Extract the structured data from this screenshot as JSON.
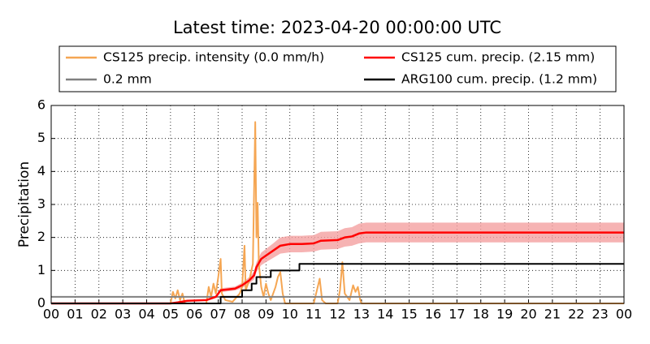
{
  "chart_data": {
    "type": "line",
    "title": "Latest time: 2023-04-20 00:00:00 UTC",
    "y_label": "Precipitation",
    "xlim": [
      0,
      24
    ],
    "ylim": [
      0,
      6
    ],
    "xticks": [
      {
        "value": 0,
        "label": "00"
      },
      {
        "value": 1,
        "label": "01"
      },
      {
        "value": 2,
        "label": "02"
      },
      {
        "value": 3,
        "label": "03"
      },
      {
        "value": 4,
        "label": "04"
      },
      {
        "value": 5,
        "label": "05"
      },
      {
        "value": 6,
        "label": "06"
      },
      {
        "value": 7,
        "label": "07"
      },
      {
        "value": 8,
        "label": "08"
      },
      {
        "value": 9,
        "label": "09"
      },
      10,
      11,
      12,
      13,
      14,
      15,
      16,
      17,
      18,
      19,
      20,
      21,
      22,
      23,
      {
        "value": 24,
        "label": "00"
      }
    ],
    "yticks": [
      0,
      1,
      2,
      3,
      4,
      5,
      6
    ],
    "grid": true,
    "legend_ncol": 2,
    "series": [
      {
        "name": "CS125 precip. intensity (0.0 mm/h)",
        "color": "#f5a653",
        "x": [
          0,
          5.0,
          5.1,
          5.2,
          5.3,
          5.4,
          5.5,
          5.6,
          6.5,
          6.6,
          6.7,
          6.8,
          6.9,
          7.0,
          7.1,
          7.15,
          7.3,
          7.6,
          7.9,
          8.0,
          8.1,
          8.15,
          8.3,
          8.45,
          8.55,
          8.6,
          8.65,
          8.7,
          8.8,
          8.9,
          9.0,
          9.1,
          9.2,
          9.4,
          9.5,
          9.6,
          9.7,
          9.8,
          11.0,
          11.1,
          11.25,
          11.35,
          11.5,
          12.0,
          12.1,
          12.2,
          12.3,
          12.5,
          12.65,
          12.75,
          12.85,
          12.95,
          13.0,
          24
        ],
        "values": [
          0,
          0,
          0.35,
          0.15,
          0.4,
          0.1,
          0.3,
          0,
          0,
          0.5,
          0.2,
          0.6,
          0.3,
          0.8,
          1.35,
          0.3,
          0.1,
          0.05,
          0.3,
          0.5,
          1.75,
          0.4,
          0.7,
          1.2,
          5.5,
          2,
          3.05,
          1.2,
          0.5,
          0.2,
          0.6,
          0.3,
          0.1,
          0.5,
          0.8,
          0.95,
          0.3,
          0,
          0,
          0.3,
          0.75,
          0.1,
          0,
          0,
          0.4,
          1.25,
          0.3,
          0.1,
          0.55,
          0.35,
          0.5,
          0.1,
          0,
          0
        ]
      },
      {
        "name": "0.2 mm",
        "color": "#808080",
        "x": [
          0,
          24
        ],
        "values": [
          0.2,
          0.2
        ]
      },
      {
        "name": "CS125 cum. precip. (2.15 mm)",
        "color": "#ff0000",
        "band_color": "#f4a0a0",
        "x": [
          0,
          5,
          5.3,
          5.7,
          6.5,
          6.9,
          7.1,
          7.7,
          8.0,
          8.3,
          8.5,
          8.6,
          8.8,
          9.0,
          9.3,
          9.6,
          10,
          10.5,
          11,
          11.3,
          12,
          12.3,
          12.6,
          12.9,
          13.2,
          24
        ],
        "values": [
          0,
          0,
          0.03,
          0.08,
          0.1,
          0.2,
          0.4,
          0.45,
          0.55,
          0.7,
          0.85,
          1.1,
          1.35,
          1.45,
          1.6,
          1.75,
          1.8,
          1.8,
          1.82,
          1.9,
          1.92,
          2.0,
          2.03,
          2.12,
          2.15,
          2.15
        ],
        "lower": [
          0,
          0,
          0.03,
          0.07,
          0.09,
          0.17,
          0.34,
          0.39,
          0.47,
          0.6,
          0.73,
          0.95,
          1.16,
          1.25,
          1.38,
          1.51,
          1.55,
          1.55,
          1.57,
          1.63,
          1.65,
          1.72,
          1.75,
          1.82,
          1.85,
          1.85
        ],
        "upper": [
          0,
          0,
          0.03,
          0.09,
          0.11,
          0.23,
          0.46,
          0.51,
          0.63,
          0.8,
          0.97,
          1.25,
          1.54,
          1.65,
          1.82,
          2.0,
          2.05,
          2.05,
          2.07,
          2.17,
          2.19,
          2.28,
          2.31,
          2.42,
          2.45,
          2.45
        ]
      },
      {
        "name": "ARG100 cum. precip. (1.2 mm)",
        "color": "#000000",
        "x": [
          0,
          7.1,
          7.1,
          8.0,
          8.0,
          8.4,
          8.4,
          8.6,
          8.6,
          9.2,
          9.2,
          10.4,
          10.4,
          24
        ],
        "values": [
          0,
          0,
          0.2,
          0.2,
          0.4,
          0.4,
          0.6,
          0.6,
          0.8,
          0.8,
          1.0,
          1.0,
          1.2,
          1.2
        ]
      }
    ]
  }
}
